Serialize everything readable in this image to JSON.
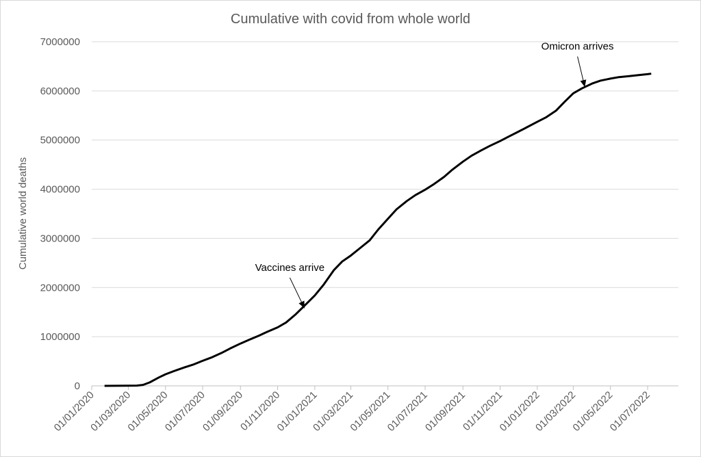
{
  "chart_data": {
    "type": "line",
    "title": "Cumulative with covid from whole world",
    "xlabel": "",
    "ylabel": "Cumulative world deaths",
    "ylim": [
      0,
      7000000
    ],
    "yticks": [
      "0",
      "1000000",
      "2000000",
      "3000000",
      "4000000",
      "5000000",
      "6000000",
      "7000000"
    ],
    "xlim": [
      "2020-01-01",
      "2022-07-01"
    ],
    "xticks": [
      "01/01/2020",
      "01/03/2020",
      "01/05/2020",
      "01/07/2020",
      "01/09/2020",
      "01/11/2020",
      "01/01/2021",
      "01/03/2021",
      "01/05/2021",
      "01/07/2021",
      "01/09/2021",
      "01/11/2021",
      "01/01/2022",
      "01/03/2022",
      "01/05/2022",
      "01/07/2022"
    ],
    "grid": true,
    "legend": "none",
    "series": [
      {
        "color": "#000000",
        "points": [
          [
            "2020-01-22",
            0
          ],
          [
            "2020-03-01",
            3000
          ],
          [
            "2020-03-15",
            6000
          ],
          [
            "2020-03-25",
            20000
          ],
          [
            "2020-04-05",
            70000
          ],
          [
            "2020-04-20",
            170000
          ],
          [
            "2020-05-01",
            235000
          ],
          [
            "2020-05-15",
            300000
          ],
          [
            "2020-06-01",
            375000
          ],
          [
            "2020-06-15",
            430000
          ],
          [
            "2020-07-01",
            510000
          ],
          [
            "2020-07-15",
            575000
          ],
          [
            "2020-08-01",
            670000
          ],
          [
            "2020-08-15",
            760000
          ],
          [
            "2020-09-01",
            860000
          ],
          [
            "2020-09-15",
            935000
          ],
          [
            "2020-10-01",
            1020000
          ],
          [
            "2020-10-15",
            1100000
          ],
          [
            "2020-11-01",
            1190000
          ],
          [
            "2020-11-15",
            1290000
          ],
          [
            "2020-12-01",
            1460000
          ],
          [
            "2020-12-15",
            1630000
          ],
          [
            "2021-01-01",
            1840000
          ],
          [
            "2021-01-15",
            2050000
          ],
          [
            "2021-02-01",
            2350000
          ],
          [
            "2021-02-15",
            2530000
          ],
          [
            "2021-03-01",
            2650000
          ],
          [
            "2021-03-15",
            2790000
          ],
          [
            "2021-04-01",
            2960000
          ],
          [
            "2021-04-15",
            3180000
          ],
          [
            "2021-05-01",
            3400000
          ],
          [
            "2021-05-15",
            3590000
          ],
          [
            "2021-06-01",
            3760000
          ],
          [
            "2021-06-15",
            3880000
          ],
          [
            "2021-07-01",
            3990000
          ],
          [
            "2021-07-15",
            4100000
          ],
          [
            "2021-08-01",
            4250000
          ],
          [
            "2021-08-15",
            4400000
          ],
          [
            "2021-09-01",
            4560000
          ],
          [
            "2021-09-15",
            4680000
          ],
          [
            "2021-10-01",
            4790000
          ],
          [
            "2021-10-15",
            4880000
          ],
          [
            "2021-11-01",
            4980000
          ],
          [
            "2021-11-15",
            5070000
          ],
          [
            "2021-12-01",
            5170000
          ],
          [
            "2021-12-15",
            5260000
          ],
          [
            "2022-01-01",
            5370000
          ],
          [
            "2022-01-15",
            5460000
          ],
          [
            "2022-02-01",
            5600000
          ],
          [
            "2022-02-15",
            5780000
          ],
          [
            "2022-03-01",
            5950000
          ],
          [
            "2022-03-15",
            6050000
          ],
          [
            "2022-04-01",
            6150000
          ],
          [
            "2022-04-15",
            6210000
          ],
          [
            "2022-05-01",
            6250000
          ],
          [
            "2022-05-15",
            6280000
          ],
          [
            "2022-06-01",
            6300000
          ],
          [
            "2022-06-15",
            6320000
          ],
          [
            "2022-07-01",
            6340000
          ],
          [
            "2022-07-07",
            6350000
          ]
        ]
      }
    ],
    "annotations": [
      {
        "text": "Vaccines arrive",
        "target": [
          "2020-12-15",
          1580000
        ],
        "tail": [
          "2020-11-21",
          2200000
        ]
      },
      {
        "text": "Omicron arrives",
        "target": [
          "2022-03-20",
          6080000
        ],
        "tail": [
          "2022-03-08",
          6700000
        ]
      }
    ]
  }
}
